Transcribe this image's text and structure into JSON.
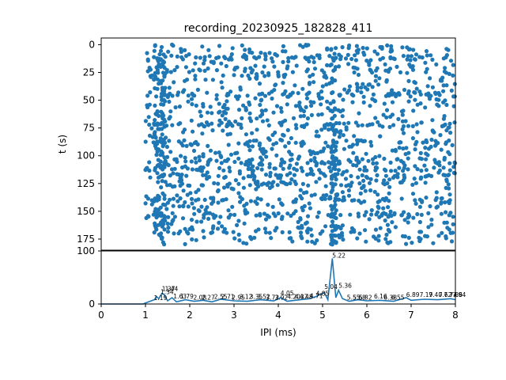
{
  "chart_data": [
    {
      "type": "scatter",
      "title": "recording_20230925_182828_411",
      "xlabel": "",
      "ylabel": "t (s)",
      "xlim": [
        0,
        8
      ],
      "ylim": [
        185,
        -6
      ],
      "y_inverted": true,
      "yticks": [
        "0",
        "25",
        "50",
        "75",
        "100",
        "125",
        "150",
        "175"
      ],
      "color": "#1f77b4",
      "generator": {
        "count": 1800,
        "x_range": [
          1.0,
          8.0
        ],
        "t_range": [
          0,
          180
        ],
        "seed": 411
      },
      "dense_rows": [
        12,
        45,
        72,
        88,
        105,
        112,
        118,
        125,
        140,
        153
      ],
      "dense_columns": [
        1.25,
        1.4,
        5.25
      ]
    },
    {
      "type": "line",
      "xlabel": "IPI (ms)",
      "ylabel": "",
      "xlim": [
        0,
        8
      ],
      "ylim": [
        0,
        100
      ],
      "xticks": [
        "0",
        "1",
        "2",
        "3",
        "4",
        "5",
        "6",
        "7",
        "8"
      ],
      "yticks": [
        "0",
        "100"
      ],
      "color": "#1f77b4",
      "x": [
        0.0,
        0.95,
        1.0,
        1.1,
        1.2,
        1.25,
        1.3,
        1.37,
        1.42,
        1.5,
        1.6,
        1.7,
        1.9,
        2.1,
        2.3,
        2.5,
        2.7,
        3.0,
        3.3,
        3.6,
        3.9,
        4.05,
        4.2,
        4.5,
        4.7,
        4.85,
        5.04,
        5.12,
        5.22,
        5.3,
        5.36,
        5.45,
        5.6,
        5.8,
        6.0,
        6.3,
        6.6,
        6.89,
        7.0,
        7.3,
        7.6,
        7.9,
        8.0
      ],
      "y": [
        0,
        0,
        2,
        5,
        8,
        14,
        10,
        20,
        18,
        6,
        12,
        4,
        8,
        5,
        7,
        4,
        9,
        6,
        5,
        8,
        6,
        12,
        5,
        8,
        10,
        14,
        22,
        8,
        86,
        12,
        26,
        10,
        5,
        8,
        6,
        7,
        5,
        12,
        7,
        9,
        8,
        10,
        8
      ],
      "peak_labels": [
        {
          "x": 1.19,
          "y": 6,
          "text": "1.19"
        },
        {
          "x": 1.34,
          "y": 17,
          "text": "1.34"
        },
        {
          "x": 1.37,
          "y": 23,
          "text": "1.37"
        },
        {
          "x": 1.44,
          "y": 23,
          "text": "1.44"
        },
        {
          "x": 1.63,
          "y": 9,
          "text": "1.63"
        },
        {
          "x": 1.79,
          "y": 9,
          "text": "1.79"
        },
        {
          "x": 2.08,
          "y": 7,
          "text": "2.08"
        },
        {
          "x": 2.27,
          "y": 7,
          "text": "2.27"
        },
        {
          "x": 2.55,
          "y": 8,
          "text": "2.55"
        },
        {
          "x": 2.71,
          "y": 8,
          "text": "2.71"
        },
        {
          "x": 2.95,
          "y": 7,
          "text": "2.95"
        },
        {
          "x": 3.12,
          "y": 8,
          "text": "3.12"
        },
        {
          "x": 3.35,
          "y": 8,
          "text": "3.35"
        },
        {
          "x": 3.52,
          "y": 8,
          "text": "3.52"
        },
        {
          "x": 3.72,
          "y": 7,
          "text": "3.72"
        },
        {
          "x": 3.92,
          "y": 7,
          "text": "3.92"
        },
        {
          "x": 4.05,
          "y": 15,
          "text": "4.05"
        },
        {
          "x": 4.2,
          "y": 8,
          "text": "4.20"
        },
        {
          "x": 4.37,
          "y": 8,
          "text": "4.37"
        },
        {
          "x": 4.48,
          "y": 8,
          "text": "4.48"
        },
        {
          "x": 4.71,
          "y": 10,
          "text": "4.71"
        },
        {
          "x": 4.85,
          "y": 14,
          "text": "4.85"
        },
        {
          "x": 5.04,
          "y": 27,
          "text": "5.04"
        },
        {
          "x": 5.22,
          "y": 86,
          "text": "5.22"
        },
        {
          "x": 5.36,
          "y": 29,
          "text": "5.36"
        },
        {
          "x": 5.55,
          "y": 7,
          "text": "5.55"
        },
        {
          "x": 5.68,
          "y": 7,
          "text": "5.68"
        },
        {
          "x": 5.82,
          "y": 7,
          "text": "5.82"
        },
        {
          "x": 6.16,
          "y": 9,
          "text": "6.16"
        },
        {
          "x": 6.38,
          "y": 7,
          "text": "6.38"
        },
        {
          "x": 6.55,
          "y": 7,
          "text": "6.55"
        },
        {
          "x": 6.89,
          "y": 12,
          "text": "6.89"
        },
        {
          "x": 7.19,
          "y": 12,
          "text": "7.19"
        },
        {
          "x": 7.4,
          "y": 12,
          "text": "7.40"
        },
        {
          "x": 7.62,
          "y": 12,
          "text": "7.62"
        },
        {
          "x": 7.74,
          "y": 12,
          "text": "7.74"
        },
        {
          "x": 7.86,
          "y": 12,
          "text": "7.86"
        },
        {
          "x": 7.94,
          "y": 12,
          "text": "7.94"
        }
      ]
    }
  ]
}
